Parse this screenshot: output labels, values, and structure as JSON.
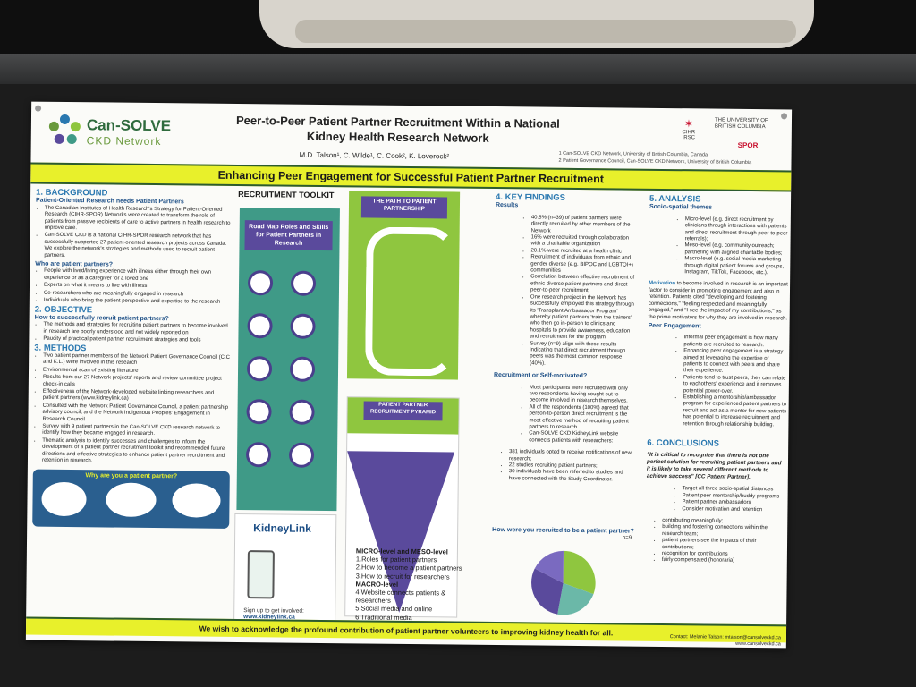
{
  "poster": {
    "org": {
      "name": "Can-SOLVE",
      "sub": "CKD Network"
    },
    "title": "Peer-to-Peer Patient Partner Recruitment Within a National Kidney Health Research Network",
    "authors": "M.D. Talson¹, C. Wilde¹, C. Cook², K. Loverock²",
    "affiliations": [
      "1 Can-SOLVE CKD Network, University of British Columbia, Canada",
      "2 Patient Governance Council, Can-SOLVE CKD Network, University of British Columbia"
    ],
    "partner_logos": {
      "cihr": "CIHR IRSC",
      "ubc": "THE UNIVERSITY OF BRITISH COLUMBIA",
      "spor": "SPOR"
    },
    "banner": "Enhancing Peer Engagement for Successful Patient Partner Recruitment",
    "background": {
      "heading": "1. BACKGROUND",
      "sub1": "Patient-Oriented Research needs Patient Partners",
      "p1": "The Canadian Institutes of Health Research's Strategy for Patient-Oriented Research (CIHR-SPOR) Networks were created to transform the role of patients from passive recipients of care to active partners in health research to improve care.",
      "p2": "Can-SOLVE CKD is a national CIHR-SPOR research network that has successfully supported 27 patient-oriented research projects across Canada. We explore the network's strategies and methods used to recruit patient partners.",
      "sub2": "Who are patient partners?",
      "items": [
        "People with lived/living experience with illness either through their own experience or as a caregiver for a loved one",
        "Experts on what it means to live with illness",
        "Co-researchers who are meaningfully engaged in research",
        "Individuals who bring the patient perspective and expertise to the research"
      ]
    },
    "objective": {
      "heading": "2. OBJECTIVE",
      "sub": "How to successfully recruit patient partners?",
      "items": [
        "The methods and strategies for recruiting patient partners to become involved in research are poorly understood and not widely reported on",
        "Paucity of practical patient partner recruitment strategies and tools"
      ]
    },
    "methods": {
      "heading": "3. METHODS",
      "items": [
        "Two patient partner members of the Network Patient Governance Council (C.C and K.L.) were involved in this research",
        "Environmental scan of existing literature",
        "Results from our 27 Network projects' reports and review committee project check-in calls",
        "Effectiveness of the Network-developed website linking researchers and patient partners (www.kidneylink.ca)",
        "Consulted with the Network Patient Governance Council, a patient partnership advisory council, and the Network Indigenous Peoples' Engagement in Research Council",
        "Survey with 9 patient partners in the Can-SOLVE CKD research network to identify how they became engaged in research.",
        "Thematic analysis to identify successes and challenges to inform the development of a patient partner recruitment toolkit and recommended future directions and effective strategies to enhance patient partner recruitment and retention in research."
      ],
      "callout": "Why are you a patient partner?"
    },
    "toolkit": {
      "heading": "RECRUITMENT TOOLKIT",
      "roadmap": "Road Map Roles and Skills for Patient Partners in Research",
      "path": "THE PATH TO PATIENT PARTNERSHIP",
      "pyramid": "PATIENT PARTNER RECRUITMENT PYRAMID",
      "kidneylink": "KidneyLink",
      "signup": "Sign up to get involved:",
      "url": "www.kidneylink.ca",
      "levels": {
        "h1": "MICRO-level and MESO-level",
        "i1": [
          "1.Roles for patient partners",
          "2.How to become a patient partners",
          "3.How to recruit for researchers"
        ],
        "h2": "MACRO-level",
        "i2": [
          "4.Website connects patients & researchers",
          "5.Social media and online",
          "6.Traditional media"
        ]
      }
    },
    "findings": {
      "heading": "4. KEY FINDINGS",
      "sub1": "Results",
      "items": [
        "40.8% (n=39) of patient partners were directly recruited by other members of the Network",
        "16% were recruited through collaboration with a charitable organization",
        "20.1% were recruited at a health clinic",
        "Recruitment of individuals from ethnic and gender diverse (e.g. BIPOC and LGBTQI+) communities",
        "Correlation between effective recruitment of ethnic diverse patient partners and direct peer-to-peer recruitment.",
        "One research project in the Network has successfully employed this strategy through its 'Transplant Ambassador Program' whereby patient partners 'train the trainers' who then go in-person to clinics and hospitals to provide awareness, education and recruitment for the program.",
        "Survey (n=9) align with these results indicating that direct recruitment through peers was the most common response (40%)."
      ],
      "sub2": "Recruitment or Self-motivated?",
      "items2": [
        "Most participants were recruited with only two respondents having sought out to become involved in research themselves.",
        "All of the respondents (100%) agreed that person-to-person direct recruitment is the most effective method of recruiting patient partners to research.",
        "Can-SOLVE CKD KidneyLink website connects patients with researchers:"
      ],
      "subitems": [
        "381 individuals opted to receive notifications of new research;",
        "22 studies recruiting patient partners;",
        "30 individuals have been referred to studies and have connected with the Study Coordinator."
      ],
      "pie_title": "How were you recruited to be a patient partner?",
      "pie_n": "n=9"
    },
    "analysis": {
      "heading": "5. ANALYSIS",
      "sub1": "Socio-spatial themes",
      "items": [
        "Micro-level (e.g. direct recruitment by clinicians through interactions with patients and direct recruitment through peer-to-peer referrals);",
        "Meso-level (e.g. community outreach; partnering with aligned charitable bodies;",
        "Macro-level (e.g. social media marketing through digital patient forums and groups, Instagram, TikTok, Facebook, etc.)."
      ],
      "motivation_label": "Motivation",
      "motivation": "to become involved in research is an important factor to consider in promoting engagement and also in retention. Patients cited \"developing and fostering connections,\" \"feeling respected and meaningfully engaged,\" and \"I see the impact of my contributions,\" as the prime motivators for why they are involved in research.",
      "sub2": "Peer Engagement",
      "items2": [
        "Informal peer engagement is how many patients are recruited to research.",
        "Enhancing peer engagement is a strategy aimed at leveraging the expertise of patients to connect with peers and share their experience.",
        "Patients tend to trust peers, they can relate to eachothers' experience and it removes potential power-over.",
        "Establishing a mentorship/ambassador program for experienced patient partners to recruit and act as a mentor for new patients has potential to increase recruitment and retention through relationship building."
      ]
    },
    "conclusions": {
      "heading": "6. CONCLUSIONS",
      "quote": "\"It is critical to recognize that there is not one perfect solution for recruiting patient partners and it is likely to take several different methods to achieve success\" [CC Patient Partner].",
      "items": [
        "Target all three socio-spatial distances",
        "Patient peer mentorship/buddy programs",
        "Patient partner ambassadors",
        "Consider motivation and retention"
      ],
      "subitems": [
        "contributing meaningfully;",
        "building and fostering connections within the research team;",
        "patient partners see the impacts of their contributions;",
        "recognition for contributions",
        "fairly compensated (honoraria)"
      ]
    },
    "footer": "We wish to acknowledge the profound contribution of patient partner volunteers to improving kidney health for all.",
    "contact": {
      "label": "Contact: Melanie Talson:",
      "email": "mtalson@cansolveckd.ca",
      "web": "www.cansolveckd.ca"
    }
  }
}
